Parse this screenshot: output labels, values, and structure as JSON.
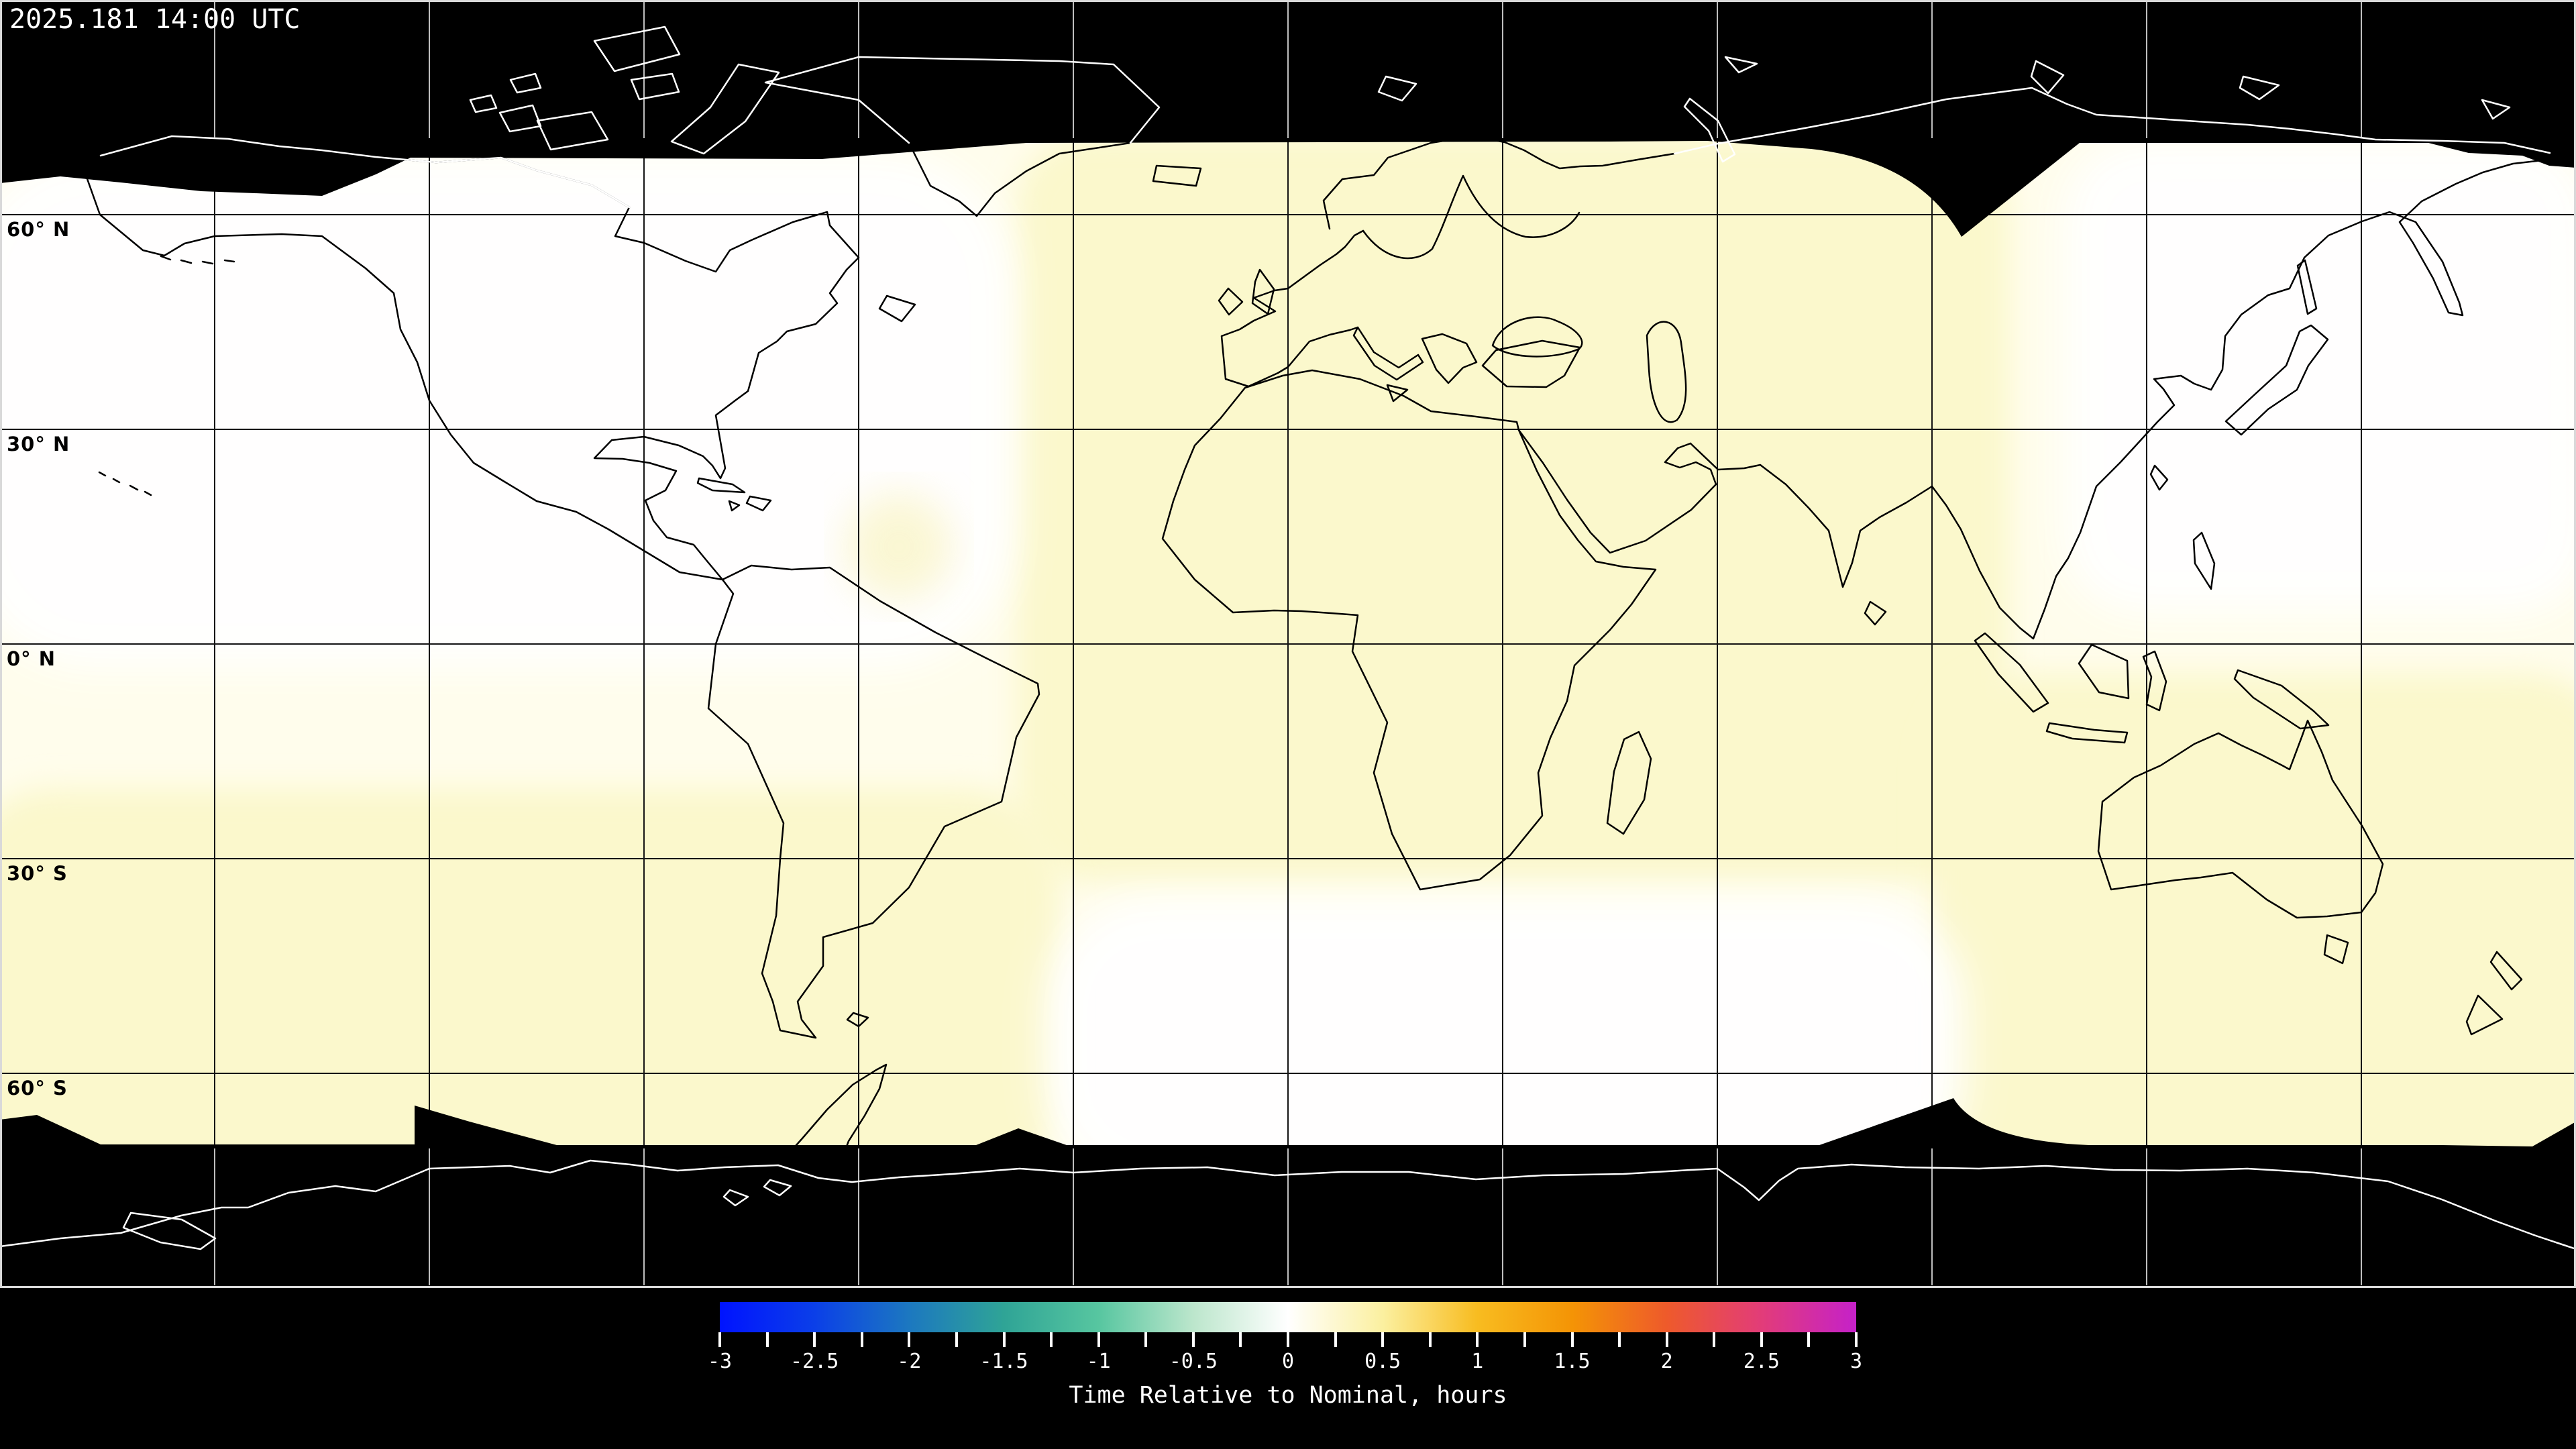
{
  "header": {
    "timestamp": "2025.181 14:00 UTC"
  },
  "map": {
    "latitude_labels": [
      {
        "text": "60° N"
      },
      {
        "text": "30° N"
      },
      {
        "text": "0° N"
      },
      {
        "text": "30° S"
      },
      {
        "text": "60° S"
      }
    ],
    "grid": {
      "lon_step_deg": 30,
      "lat_step_deg": 30,
      "lon_lines": 11,
      "lat_lines": 5
    }
  },
  "colorbar": {
    "title": "Time Relative to Nominal, hours",
    "min": -3,
    "max": 3,
    "minor_tick_step": 0.25,
    "label_step": 0.5,
    "tick_labels": [
      "-3",
      "-2.5",
      "-2",
      "-1.5",
      "-1",
      "-0.5",
      "0",
      "0.5",
      "1",
      "1.5",
      "2",
      "2.5",
      "3"
    ],
    "gradient_stops": [
      {
        "v": -3.0,
        "color": "#0013FF"
      },
      {
        "v": -2.5,
        "color": "#0B3FE8"
      },
      {
        "v": -2.0,
        "color": "#1C78C0"
      },
      {
        "v": -1.5,
        "color": "#2FA496"
      },
      {
        "v": -1.0,
        "color": "#57C6A0"
      },
      {
        "v": -0.5,
        "color": "#BCE6CC"
      },
      {
        "v": 0.0,
        "color": "#FFFFFF"
      },
      {
        "v": 0.5,
        "color": "#FBF0A0"
      },
      {
        "v": 1.0,
        "color": "#F8BC20"
      },
      {
        "v": 1.5,
        "color": "#F49405"
      },
      {
        "v": 2.0,
        "color": "#EE5A2B"
      },
      {
        "v": 2.5,
        "color": "#E23C79"
      },
      {
        "v": 3.0,
        "color": "#C521C9"
      }
    ]
  },
  "colors": {
    "background": "#000000",
    "map_base": "#FFFDEC",
    "map_yellow": "#FBF8CC",
    "map_white": "#FFFFFF",
    "polar_night": "#000000",
    "grid_line": "#141414",
    "grid_line_on_dark": "#FFFFFF",
    "coastline": "#000000",
    "coastline_on_dark": "#FFFFFF",
    "frame": "#D9D9D9",
    "label_text": "#000000",
    "legend_text": "#FFFFFF"
  }
}
